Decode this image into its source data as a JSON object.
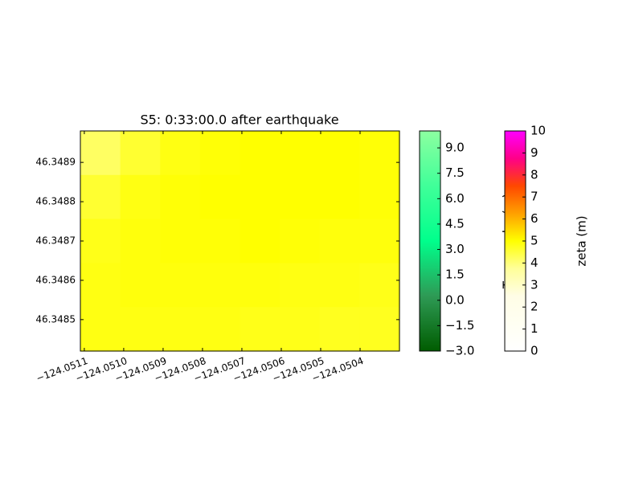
{
  "chart_data": {
    "type": "heatmap",
    "title": "S5: 0:33:00.0 after earthquake",
    "xlim": [
      -124.05111,
      -124.0503
    ],
    "ylim": [
      46.34842,
      46.34898
    ],
    "xticks": [
      {
        "value": -124.0511,
        "label": "−124.0511"
      },
      {
        "value": -124.051,
        "label": "−124.0510"
      },
      {
        "value": -124.0509,
        "label": "−124.0509"
      },
      {
        "value": -124.0508,
        "label": "−124.0508"
      },
      {
        "value": -124.0507,
        "label": "−124.0507"
      },
      {
        "value": -124.0506,
        "label": "−124.0506"
      },
      {
        "value": -124.0505,
        "label": "−124.0505"
      },
      {
        "value": -124.0504,
        "label": "−124.0504"
      }
    ],
    "yticks": [
      46.3485,
      46.3486,
      46.3487,
      46.3488,
      46.3489
    ],
    "z": [
      [
        4.2,
        4.6,
        4.85,
        4.95,
        5.0,
        5.0,
        5.0,
        4.95
      ],
      [
        4.6,
        4.85,
        4.95,
        5.0,
        5.0,
        5.0,
        5.0,
        4.95
      ],
      [
        4.8,
        4.9,
        4.95,
        4.95,
        5.0,
        4.95,
        4.9,
        4.9
      ],
      [
        4.85,
        4.9,
        4.9,
        4.9,
        4.9,
        4.85,
        4.85,
        4.8
      ],
      [
        4.85,
        4.85,
        4.85,
        4.85,
        4.8,
        4.8,
        4.75,
        4.75
      ]
    ],
    "colorbars": [
      {
        "label": "Topography (m)",
        "clim": [
          -3,
          10
        ],
        "colors": [
          "#005c00",
          "#2e9a55",
          "#00ff8c",
          "#40ff99",
          "#8cffa0"
        ],
        "ticks": [
          {
            "value": -3.0,
            "label": "−3.0"
          },
          {
            "value": -1.5,
            "label": "−1.5"
          },
          {
            "value": 0.0,
            "label": "0.0"
          },
          {
            "value": 1.5,
            "label": "1.5"
          },
          {
            "value": 3.0,
            "label": "3.0"
          },
          {
            "value": 4.5,
            "label": "4.5"
          },
          {
            "value": 6.0,
            "label": "6.0"
          },
          {
            "value": 7.5,
            "label": "7.5"
          },
          {
            "value": 9.0,
            "label": "9.0"
          }
        ]
      },
      {
        "label": "zeta (m)",
        "clim": [
          0,
          10
        ],
        "colors": [
          "#ffffff",
          "#fffff2",
          "#fffde6",
          "#ffff99",
          "#ffff00",
          "#ffa000",
          "#ff4800",
          "#ff0088",
          "#ff00ff"
        ],
        "ticks": [
          0,
          1,
          2,
          3,
          4,
          5,
          6,
          7,
          8,
          9,
          10
        ]
      }
    ]
  }
}
